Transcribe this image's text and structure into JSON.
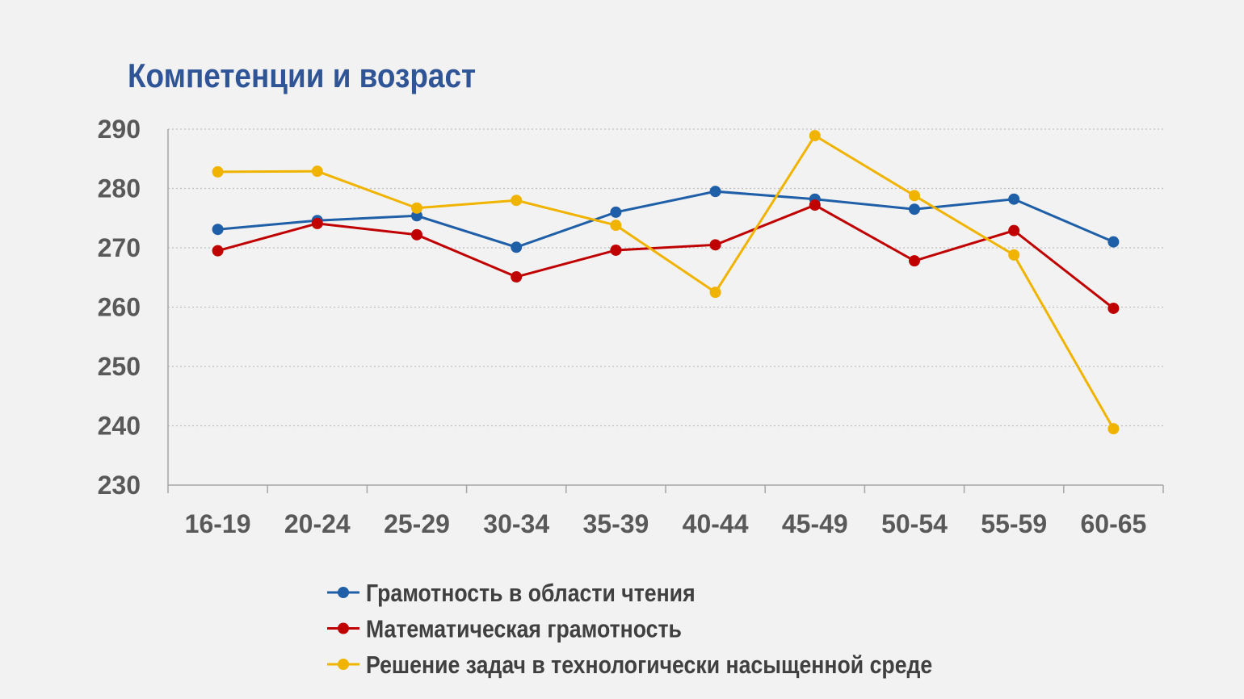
{
  "chart_data": {
    "type": "line",
    "title": "Компетенции и возраст",
    "xlabel": "",
    "ylabel": "",
    "categories": [
      "16-19",
      "20-24",
      "25-29",
      "30-34",
      "35-39",
      "40-44",
      "45-49",
      "50-54",
      "55-59",
      "60-65"
    ],
    "ylim": [
      230,
      290
    ],
    "yticks": [
      230,
      240,
      250,
      260,
      270,
      280,
      290
    ],
    "grid": "horizontal dotted",
    "legend_position": "bottom",
    "series": [
      {
        "name": "Грамотность в области чтения",
        "color": "#1f5fa8",
        "values": [
          273.1,
          274.6,
          275.4,
          270.1,
          276.0,
          279.5,
          278.2,
          276.5,
          278.2,
          271.0
        ]
      },
      {
        "name": "Математическая грамотность",
        "color": "#c00000",
        "values": [
          269.5,
          274.1,
          272.2,
          265.1,
          269.6,
          270.5,
          277.2,
          267.8,
          272.9,
          259.8
        ]
      },
      {
        "name": "Решение задач в технологически насыщенной среде",
        "color": "#f0b400",
        "values": [
          282.8,
          282.9,
          276.7,
          278.0,
          273.8,
          262.5,
          288.9,
          278.8,
          268.8,
          239.5
        ]
      }
    ]
  }
}
